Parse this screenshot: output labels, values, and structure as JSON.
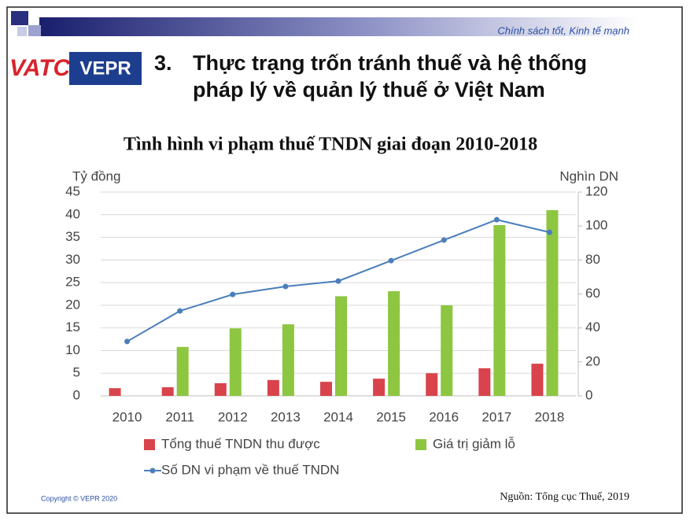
{
  "header": {
    "tagline": "Chính sách tốt, Kinh tế mạnh",
    "logo_left": "VATC",
    "logo_right": "VEPR",
    "section_number": "3.",
    "title_lines": [
      "Thực trạng trốn tránh thuế và hệ thống",
      "pháp lý về quản lý thuế ở Việt Nam"
    ]
  },
  "chart_data": {
    "type": "bar",
    "title": "Tình hình vi phạm thuế TNDN giai đoạn 2010-2018",
    "y_label": "Tỷ đồng",
    "y2_label": "Nghìn DN",
    "categories": [
      "2010",
      "2011",
      "2012",
      "2013",
      "2014",
      "2015",
      "2016",
      "2017",
      "2018"
    ],
    "series": [
      {
        "name": "Tổng thuế TNDN thu được",
        "type": "bar",
        "color": "#d9434b",
        "values": [
          1.7,
          1.9,
          2.8,
          3.5,
          3.1,
          3.8,
          5.0,
          6.1,
          7.1
        ]
      },
      {
        "name": "Giá trị giảm lỗ",
        "type": "bar",
        "color": "#8dc641",
        "values": [
          null,
          10.8,
          14.9,
          15.8,
          22.0,
          23.1,
          20.0,
          37.7,
          41.0
        ]
      },
      {
        "name": "Số DN vi phạm về thuế TNDN",
        "type": "line",
        "axis": "y2",
        "color": "#4a7ebb",
        "values": [
          32,
          50,
          59.7,
          64.4,
          67.6,
          79.6,
          91.7,
          103.7,
          96.3
        ]
      }
    ],
    "ylim": [
      0,
      45
    ],
    "yticks": [
      0,
      5,
      10,
      15,
      20,
      25,
      30,
      35,
      40,
      45
    ],
    "y2lim": [
      0,
      120
    ],
    "y2ticks": [
      0,
      20,
      40,
      60,
      80,
      100,
      120
    ],
    "grid": true,
    "legend": "bottom"
  },
  "footer": {
    "copyright": "Copyright © VEPR 2020",
    "source": "Nguồn: Tổng cục Thuế, 2019"
  }
}
